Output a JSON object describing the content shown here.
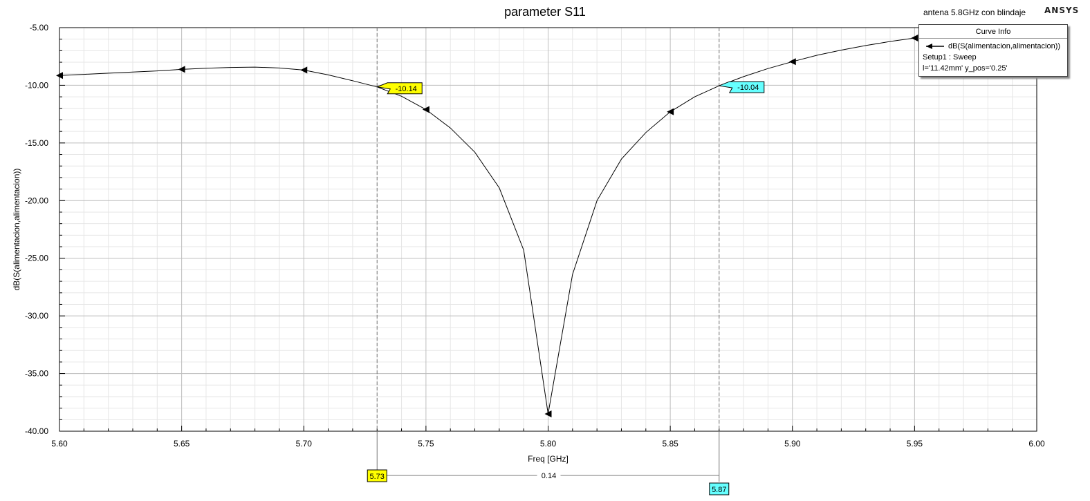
{
  "header": {
    "title": "parameter S11",
    "project": "antena 5.8GHz con blindaje",
    "brand": "ANSYS"
  },
  "legend": {
    "title": "Curve Info",
    "series_label": "dB(S(alimentacion,alimentacion))",
    "setup": "Setup1 : Sweep",
    "params": "l='11.42mm' y_pos='0.25'"
  },
  "markers": {
    "m1": {
      "x_label": "5.73",
      "y_label": "-10.14",
      "x": 5.73,
      "y": -10.14,
      "color": "#ffff00"
    },
    "m2": {
      "x_label": "5.87",
      "y_label": "-10.04",
      "x": 5.87,
      "y": -10.04,
      "color": "#66ffff"
    },
    "delta_label": "0.14"
  },
  "chart_data": {
    "type": "line",
    "title": "parameter S11",
    "xlabel": "Freq [GHz]",
    "ylabel": "dB(S(alimentacion,alimentacion))",
    "xlim": [
      5.6,
      6.0
    ],
    "ylim": [
      -40.0,
      -5.0
    ],
    "x_ticks": [
      "5.60",
      "5.65",
      "5.70",
      "5.75",
      "5.80",
      "5.85",
      "5.90",
      "5.95",
      "6.00"
    ],
    "y_ticks": [
      "-5.00",
      "-10.00",
      "-15.00",
      "-20.00",
      "-25.00",
      "-30.00",
      "-35.00",
      "-40.00"
    ],
    "grid": true,
    "legend_position": "top-right",
    "series": [
      {
        "name": "dB(S(alimentacion,alimentacion))",
        "color": "#000000",
        "x": [
          5.6,
          5.61,
          5.62,
          5.63,
          5.64,
          5.65,
          5.66,
          5.67,
          5.68,
          5.69,
          5.7,
          5.71,
          5.72,
          5.73,
          5.74,
          5.75,
          5.76,
          5.77,
          5.78,
          5.79,
          5.8,
          5.81,
          5.82,
          5.83,
          5.84,
          5.85,
          5.86,
          5.87,
          5.88,
          5.89,
          5.9,
          5.91,
          5.92,
          5.93,
          5.94,
          5.95
        ],
        "y": [
          -9.15,
          -9.05,
          -8.95,
          -8.85,
          -8.75,
          -8.62,
          -8.52,
          -8.45,
          -8.42,
          -8.5,
          -8.68,
          -9.1,
          -9.6,
          -10.14,
          -10.95,
          -12.1,
          -13.7,
          -15.8,
          -18.9,
          -24.3,
          -38.5,
          -26.4,
          -20.0,
          -16.4,
          -14.1,
          -12.3,
          -11.0,
          -10.04,
          -9.25,
          -8.55,
          -7.95,
          -7.4,
          -6.95,
          -6.55,
          -6.2,
          -5.9
        ]
      }
    ],
    "arrow_points_x": [
      5.6,
      5.65,
      5.7,
      5.75,
      5.8,
      5.85,
      5.9,
      5.95
    ]
  }
}
